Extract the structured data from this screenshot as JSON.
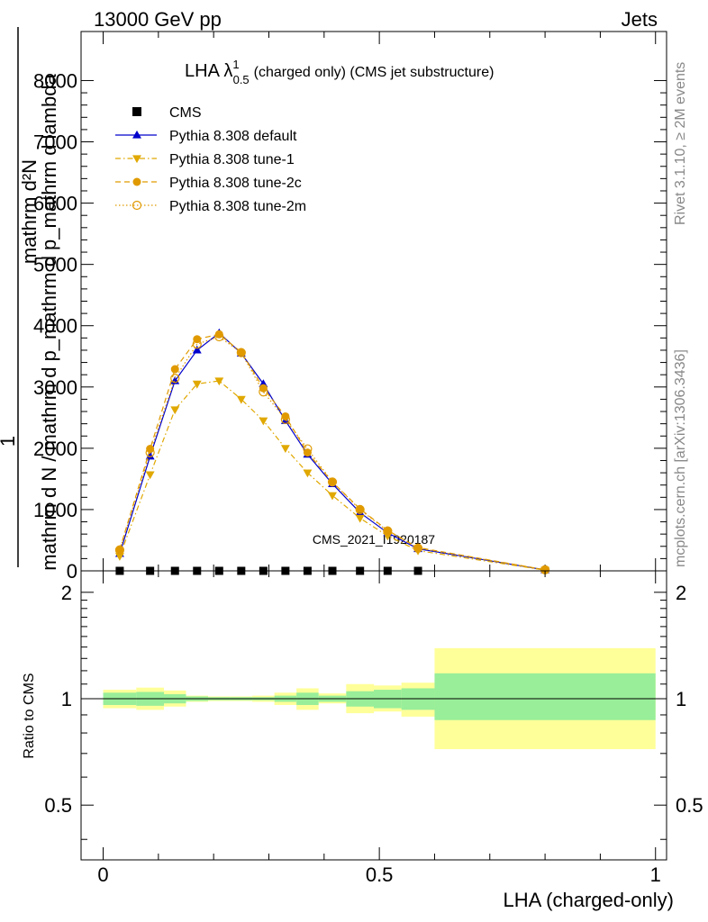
{
  "header": {
    "left": "13000 GeV pp",
    "right": "Jets"
  },
  "side_notes": {
    "rivet": "Rivet 3.1.10, ≥ 2M events",
    "mcplots": "mcplots.cern.ch [arXiv:1306.3436]"
  },
  "chart_data": [
    {
      "type": "line",
      "title_main": "LHA λ",
      "title_sup": "1",
      "title_sub": "0.5",
      "title_rest": "(charged only) (CMS jet substructure)",
      "ylabel_numerator": "mathrm d²N",
      "ylabel_one": "1",
      "ylabel_denominator": "mathrm d N / mathrm d p_mathrm d p_mathrm d lambda",
      "watermark": "CMS_2021_I1920187",
      "xlim": [
        -0.04,
        1.02
      ],
      "ylim": [
        0,
        8800
      ],
      "yticks": [
        0,
        1000,
        2000,
        3000,
        4000,
        5000,
        6000,
        7000,
        8000
      ],
      "ytick_labels": [
        "0",
        "1000",
        "2000",
        "3000",
        "4000",
        "5000",
        "6000",
        "7000",
        "8000"
      ],
      "grid": false,
      "legend_position": "top-left",
      "series": [
        {
          "name": "CMS",
          "color": "#000000",
          "marker": "square",
          "x": [
            0.03,
            0.085,
            0.13,
            0.17,
            0.21,
            0.25,
            0.29,
            0.33,
            0.37,
            0.415,
            0.465,
            0.515,
            0.57
          ],
          "y": [
            0,
            0,
            0,
            0,
            0,
            0,
            0,
            0,
            0,
            0,
            0,
            0,
            0
          ]
        },
        {
          "name": "Pythia 8.308 default",
          "color": "#0000cc",
          "marker": "triangle-up",
          "line": "solid",
          "x": [
            0.03,
            0.085,
            0.13,
            0.17,
            0.21,
            0.25,
            0.29,
            0.33,
            0.37,
            0.415,
            0.465,
            0.515,
            0.57,
            0.8
          ],
          "y": [
            280,
            1870,
            3100,
            3600,
            3880,
            3550,
            3050,
            2450,
            1900,
            1420,
            950,
            620,
            360,
            15
          ]
        },
        {
          "name": "Pythia 8.308 tune-1",
          "color": "#e0a800",
          "marker": "triangle-down",
          "line": "dash-dot",
          "x": [
            0.03,
            0.085,
            0.13,
            0.17,
            0.21,
            0.25,
            0.29,
            0.33,
            0.37,
            0.415,
            0.465,
            0.515,
            0.57,
            0.8
          ],
          "y": [
            240,
            1570,
            2630,
            3050,
            3100,
            2800,
            2450,
            2000,
            1600,
            1230,
            860,
            570,
            330,
            12
          ]
        },
        {
          "name": "Pythia 8.308 tune-2c",
          "color": "#e09a00",
          "marker": "circle",
          "line": "dashed",
          "x": [
            0.03,
            0.085,
            0.13,
            0.17,
            0.21,
            0.25,
            0.29,
            0.33,
            0.37,
            0.415,
            0.465,
            0.515,
            0.57,
            0.8
          ],
          "y": [
            350,
            1990,
            3290,
            3780,
            3860,
            3570,
            2980,
            2520,
            1930,
            1450,
            1010,
            660,
            380,
            18
          ]
        },
        {
          "name": "Pythia 8.308 tune-2m",
          "color": "#e09a00",
          "marker": "open-circle",
          "line": "dotted",
          "x": [
            0.03,
            0.085,
            0.13,
            0.17,
            0.21,
            0.25,
            0.29,
            0.33,
            0.37,
            0.415,
            0.465,
            0.515,
            0.57,
            0.8
          ],
          "y": [
            340,
            1930,
            3140,
            3700,
            3820,
            3560,
            2920,
            2470,
            1990,
            1450,
            1000,
            650,
            370,
            17
          ]
        }
      ]
    },
    {
      "type": "area",
      "ylabel": "Ratio to CMS",
      "xlabel": "LHA (charged-only)",
      "xlim": [
        -0.04,
        1.02
      ],
      "xticks": [
        0,
        0.5,
        1
      ],
      "xtick_labels": [
        "0",
        "0.5",
        "1"
      ],
      "ylim": [
        0.35,
        2.3
      ],
      "yscale": "log",
      "yticks": [
        0.5,
        1,
        2
      ],
      "ytick_labels": [
        "0.5",
        "1",
        "2"
      ],
      "reference_line": 1,
      "bands": {
        "edges": [
          0,
          0.06,
          0.11,
          0.15,
          0.19,
          0.23,
          0.27,
          0.31,
          0.35,
          0.39,
          0.44,
          0.49,
          0.54,
          0.6,
          1.0
        ],
        "stat": {
          "color": "#99ee99",
          "low": [
            0.96,
            0.955,
            0.97,
            0.985,
            0.99,
            0.99,
            0.99,
            0.98,
            0.96,
            0.98,
            0.95,
            0.94,
            0.93,
            0.87
          ],
          "high": [
            1.04,
            1.045,
            1.03,
            1.015,
            1.01,
            1.01,
            1.01,
            1.02,
            1.04,
            1.02,
            1.05,
            1.06,
            1.07,
            1.18
          ]
        },
        "total": {
          "color": "#ffff99",
          "low": [
            0.94,
            0.93,
            0.95,
            0.98,
            0.985,
            0.985,
            0.98,
            0.96,
            0.93,
            0.97,
            0.91,
            0.92,
            0.89,
            0.72
          ],
          "high": [
            1.06,
            1.075,
            1.055,
            1.02,
            1.015,
            1.015,
            1.02,
            1.04,
            1.07,
            1.035,
            1.1,
            1.09,
            1.11,
            1.39
          ]
        }
      }
    }
  ]
}
